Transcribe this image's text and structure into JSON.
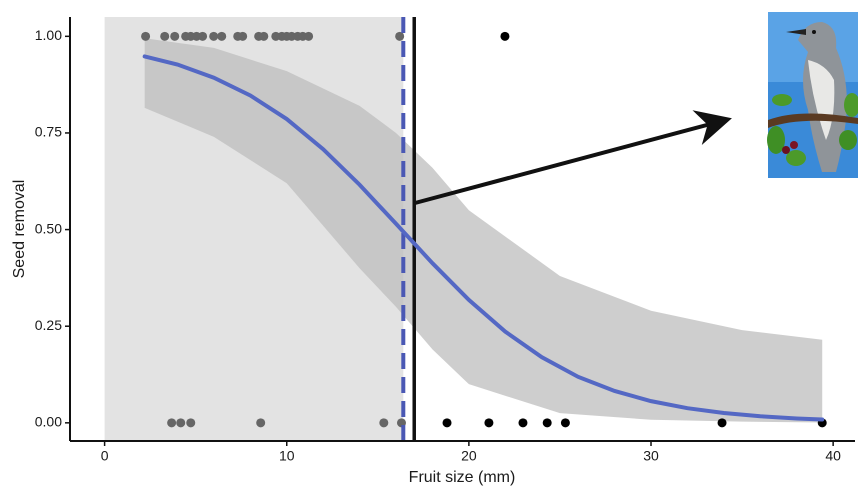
{
  "chart_data": {
    "type": "logistic",
    "x_label": "Fruit size (mm)",
    "y_label": "Seed removal",
    "xlim": [
      -1.9,
      41.2
    ],
    "ylim": [
      -0.047,
      1.05
    ],
    "xticks": [
      0,
      10,
      20,
      30,
      40
    ],
    "yticks": [
      {
        "value": 0,
        "label": "0.00"
      },
      {
        "value": 0.25,
        "label": "0.25"
      },
      {
        "value": 0.5,
        "label": "0.50"
      },
      {
        "value": 0.75,
        "label": "0.75"
      },
      {
        "value": 1,
        "label": "1.00"
      }
    ],
    "shaded_region": {
      "x": [
        0,
        16.4
      ],
      "color": "#e3e3e3"
    },
    "vlines": [
      {
        "x": 16.4,
        "color": "#4a58b4",
        "dashed": true
      },
      {
        "x": 17.0,
        "color": "#111111",
        "dashed": false
      }
    ],
    "band": {
      "color": "#bdbdbd",
      "x": [
        2.2,
        6,
        10,
        14,
        16,
        18,
        20,
        25,
        30,
        35,
        39.4
      ],
      "upper": [
        0.995,
        0.97,
        0.91,
        0.82,
        0.75,
        0.66,
        0.55,
        0.38,
        0.29,
        0.24,
        0.215
      ],
      "lower": [
        0.815,
        0.74,
        0.62,
        0.4,
        0.3,
        0.19,
        0.1,
        0.025,
        0.008,
        0.003,
        0.001
      ]
    },
    "curve": {
      "color": "#5468c4",
      "x": [
        2.2,
        4,
        6,
        8,
        10,
        12,
        14,
        16,
        18,
        20,
        22,
        24,
        26,
        28,
        30,
        32,
        34,
        36,
        38,
        39.4
      ],
      "values": [
        0.948,
        0.927,
        0.893,
        0.847,
        0.786,
        0.708,
        0.616,
        0.515,
        0.413,
        0.318,
        0.236,
        0.17,
        0.119,
        0.0824,
        0.0561,
        0.0379,
        0.0254,
        0.017,
        0.0113,
        0.0085
      ]
    },
    "series": [
      {
        "color": "#666666",
        "x": [
          2.25,
          3.3,
          3.85,
          4.45,
          4.73,
          5.05,
          5.38,
          5.99,
          6.43,
          7.31,
          7.58,
          8.46,
          8.74,
          9.4,
          9.73,
          10.0,
          10.27,
          10.6,
          10.88,
          11.2,
          16.2,
          3.68,
          4.18,
          4.73,
          8.57,
          15.33,
          16.3
        ],
        "values": [
          1,
          1,
          1,
          1,
          1,
          1,
          1,
          1,
          1,
          1,
          1,
          1,
          1,
          1,
          1,
          1,
          1,
          1,
          1,
          1,
          1,
          0,
          0,
          0,
          0,
          0,
          0
        ]
      },
      {
        "color": "#000000",
        "x": [
          21.98,
          18.8,
          21.1,
          22.97,
          24.3,
          25.3,
          33.9,
          39.4
        ],
        "values": [
          1,
          0,
          0,
          0,
          0,
          0,
          0,
          0
        ]
      }
    ]
  }
}
